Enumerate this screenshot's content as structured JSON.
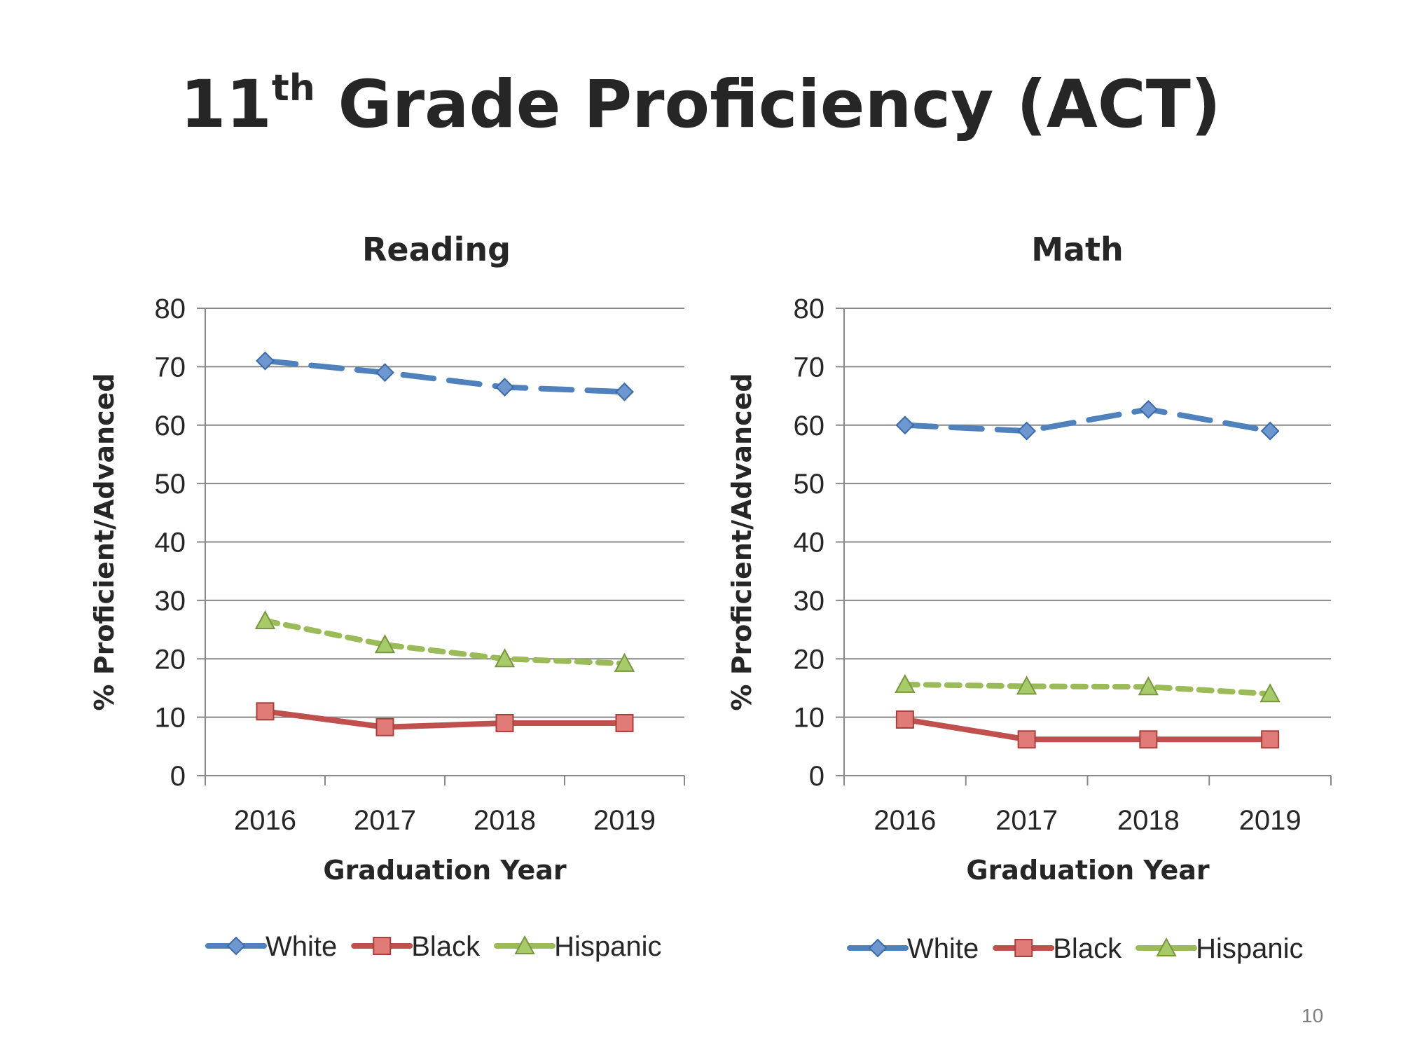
{
  "slide": {
    "title_main": "11",
    "title_sup": "th",
    "title_rest": " Grade Proficiency (ACT)",
    "page_number": "10"
  },
  "chart_data": [
    {
      "type": "line",
      "title": "Reading",
      "xlabel": "Graduation Year",
      "ylabel": "% Proficient/Advanced",
      "categories": [
        "2016",
        "2017",
        "2018",
        "2019"
      ],
      "ylim": [
        0,
        80
      ],
      "yticks": [
        0,
        10,
        20,
        30,
        40,
        50,
        60,
        70,
        80
      ],
      "grid": true,
      "legend_position": "bottom",
      "series": [
        {
          "name": "White",
          "values": [
            71,
            69,
            66.5,
            65.7
          ],
          "color": "#4F81BD",
          "marker": "diamond",
          "dash": "long-dash"
        },
        {
          "name": "Black",
          "values": [
            11,
            8.3,
            9,
            9
          ],
          "color": "#C0504D",
          "marker": "square",
          "dash": "solid"
        },
        {
          "name": "Hispanic",
          "values": [
            26.5,
            22.4,
            20,
            19.2
          ],
          "color": "#9BBB59",
          "marker": "triangle",
          "dash": "short-dash"
        }
      ]
    },
    {
      "type": "line",
      "title": "Math",
      "xlabel": "Graduation Year",
      "ylabel": "% Proficient/Advanced",
      "categories": [
        "2016",
        "2017",
        "2018",
        "2019"
      ],
      "ylim": [
        0,
        80
      ],
      "yticks": [
        0,
        10,
        20,
        30,
        40,
        50,
        60,
        70,
        80
      ],
      "grid": true,
      "legend_position": "bottom",
      "series": [
        {
          "name": "White",
          "values": [
            60,
            59,
            62.7,
            59
          ],
          "color": "#4F81BD",
          "marker": "diamond",
          "dash": "long-dash"
        },
        {
          "name": "Black",
          "values": [
            9.6,
            6.2,
            6.2,
            6.2
          ],
          "color": "#C0504D",
          "marker": "square",
          "dash": "solid"
        },
        {
          "name": "Hispanic",
          "values": [
            15.6,
            15.3,
            15.2,
            14
          ],
          "color": "#9BBB59",
          "marker": "triangle",
          "dash": "short-dash"
        }
      ]
    }
  ]
}
